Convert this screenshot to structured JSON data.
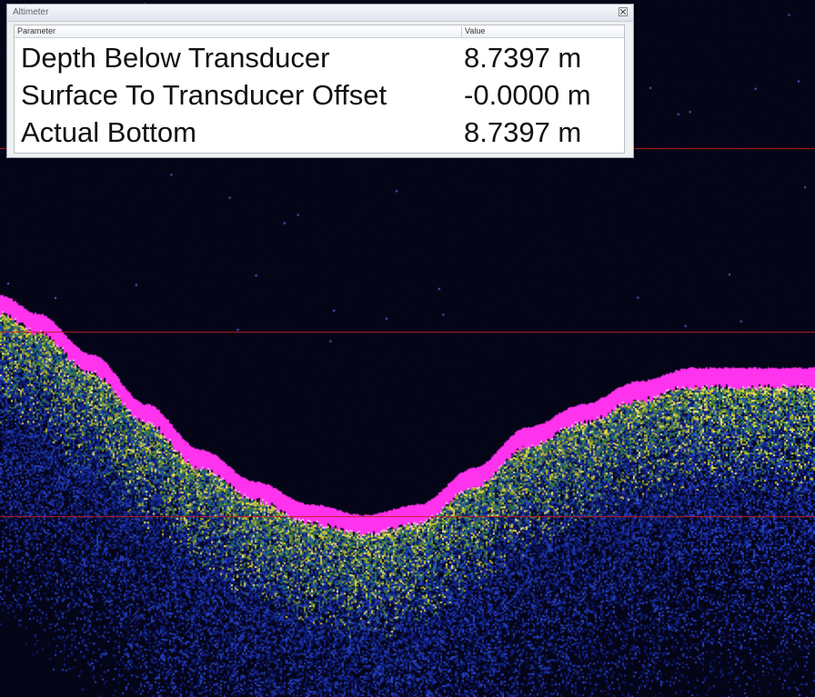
{
  "window": {
    "title": "Altimeter",
    "close_icon": "close-icon"
  },
  "table": {
    "columns": [
      "Parameter",
      "Value"
    ],
    "rows": [
      {
        "parameter": "Depth Below Transducer",
        "value": "8.7397 m"
      },
      {
        "parameter": "Surface To Transducer Offset",
        "value": "-0.0000 m"
      },
      {
        "parameter": "Actual Bottom",
        "value": "8.7397 m"
      }
    ]
  },
  "echogram": {
    "background_color": "#050518",
    "bottom_color": "#ff33ee",
    "gridline_color": "#c0201e"
  }
}
